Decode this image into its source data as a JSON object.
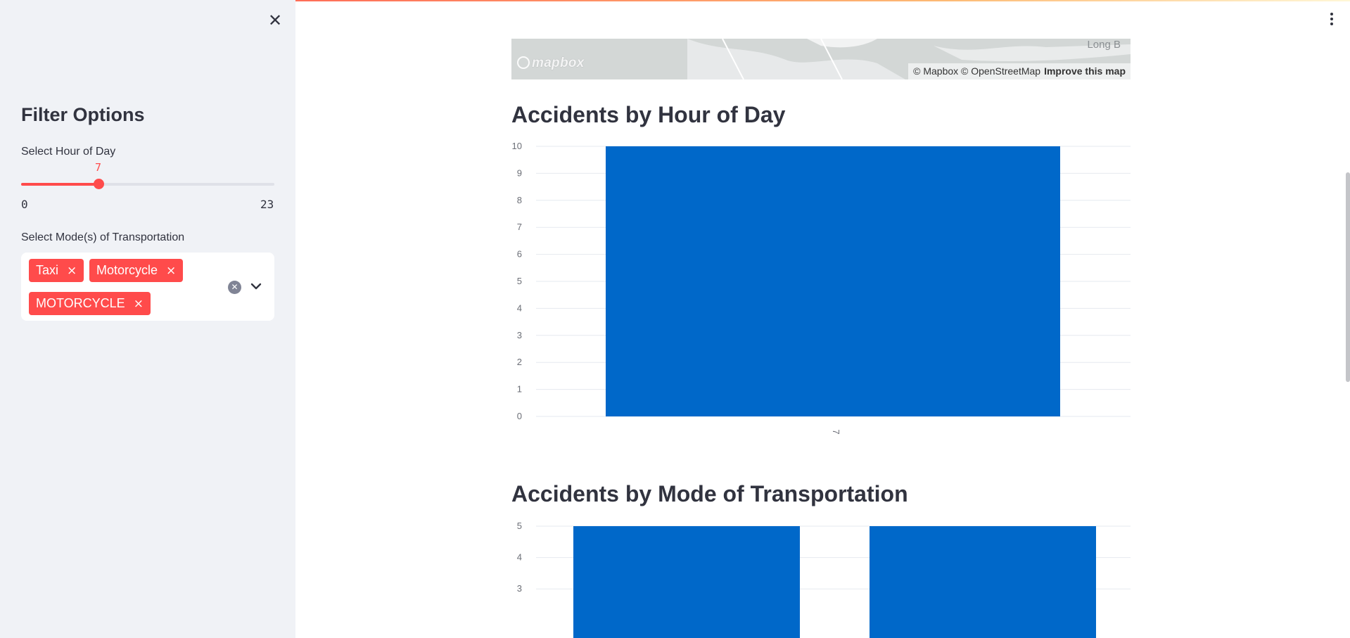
{
  "sidebar": {
    "close_icon": "close-icon",
    "title": "Filter Options",
    "hour_slider": {
      "label": "Select Hour of Day",
      "value": 7,
      "value_label": "7",
      "min": 0,
      "max": 23,
      "min_label": "0",
      "max_label": "23",
      "accent": "#ff4b4b"
    },
    "mode_select": {
      "label": "Select Mode(s) of Transportation",
      "chips": [
        "Taxi",
        "Motorcycle",
        "MOTORCYCLE"
      ],
      "chip_remove": "×",
      "chip_color": "#ff4b4b"
    }
  },
  "map": {
    "logo": "mapbox",
    "place_label": "Long B",
    "attribution": "© Mapbox © OpenStreetMap",
    "improve_link": "Improve this map"
  },
  "charts": {
    "hour_title": "Accidents by Hour of Day",
    "mode_title": "Accidents by Mode of Transportation"
  },
  "chart_data": [
    {
      "type": "bar",
      "title": "Accidents by Hour of Day",
      "categories": [
        "7"
      ],
      "values": [
        10
      ],
      "ylim": [
        0,
        10
      ],
      "yticks": [
        0,
        1,
        2,
        3,
        4,
        5,
        6,
        7,
        8,
        9,
        10
      ],
      "xlabel": "",
      "ylabel": "",
      "grid": true,
      "color": "#0068c9"
    },
    {
      "type": "bar",
      "title": "Accidents by Mode of Transportation",
      "categories": [
        "",
        ""
      ],
      "values": [
        5,
        5
      ],
      "ylim": [
        0,
        5
      ],
      "yticks": [
        3,
        4,
        5
      ],
      "xlabel": "",
      "ylabel": "",
      "grid": true,
      "color": "#0068c9"
    }
  ]
}
